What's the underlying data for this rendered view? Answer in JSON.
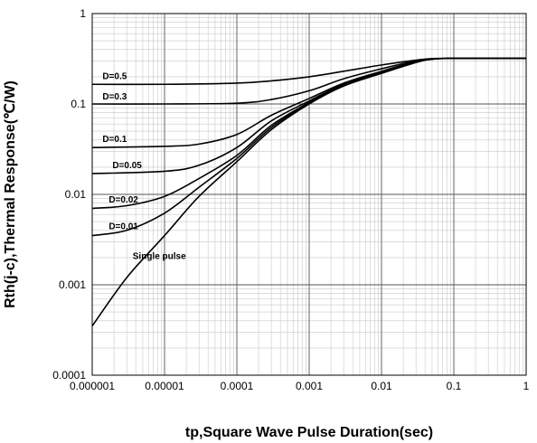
{
  "chart_data": {
    "type": "line",
    "title": "",
    "xlabel": "tp,Square Wave Pulse Duration(sec)",
    "ylabel": "Rth(j-c),Thermal Response(℃/W)",
    "x_scale": "log",
    "y_scale": "log",
    "xlim": [
      1e-06,
      1
    ],
    "ylim": [
      0.0001,
      1
    ],
    "x_ticks": [
      "0.000001",
      "0.00001",
      "0.0001",
      "0.001",
      "0.01",
      "0.1",
      "1"
    ],
    "y_ticks": [
      "0.0001",
      "0.001",
      "0.01",
      "0.1",
      "1"
    ],
    "grid": true,
    "series": [
      {
        "name": "D=0.5",
        "points": [
          [
            1e-06,
            0.165
          ],
          [
            1e-05,
            0.165
          ],
          [
            0.0001,
            0.17
          ],
          [
            0.0003,
            0.18
          ],
          [
            0.001,
            0.2
          ],
          [
            0.003,
            0.23
          ],
          [
            0.01,
            0.27
          ],
          [
            0.03,
            0.305
          ],
          [
            0.05,
            0.318
          ],
          [
            0.1,
            0.32
          ],
          [
            1,
            0.32
          ]
        ]
      },
      {
        "name": "D=0.3",
        "points": [
          [
            1e-06,
            0.1
          ],
          [
            1e-05,
            0.1
          ],
          [
            0.0001,
            0.102
          ],
          [
            0.0003,
            0.112
          ],
          [
            0.001,
            0.14
          ],
          [
            0.003,
            0.19
          ],
          [
            0.01,
            0.245
          ],
          [
            0.03,
            0.3
          ],
          [
            0.05,
            0.316
          ],
          [
            0.1,
            0.32
          ],
          [
            1,
            0.32
          ]
        ]
      },
      {
        "name": "D=0.1",
        "points": [
          [
            1e-06,
            0.033
          ],
          [
            1e-05,
            0.034
          ],
          [
            3e-05,
            0.036
          ],
          [
            0.0001,
            0.046
          ],
          [
            0.0003,
            0.075
          ],
          [
            0.001,
            0.115
          ],
          [
            0.003,
            0.17
          ],
          [
            0.01,
            0.23
          ],
          [
            0.03,
            0.295
          ],
          [
            0.05,
            0.315
          ],
          [
            0.1,
            0.32
          ],
          [
            1,
            0.32
          ]
        ]
      },
      {
        "name": "D=0.05",
        "points": [
          [
            1e-06,
            0.017
          ],
          [
            1e-05,
            0.018
          ],
          [
            3e-05,
            0.021
          ],
          [
            0.0001,
            0.033
          ],
          [
            0.0003,
            0.065
          ],
          [
            0.001,
            0.108
          ],
          [
            0.003,
            0.165
          ],
          [
            0.01,
            0.225
          ],
          [
            0.03,
            0.292
          ],
          [
            0.05,
            0.314
          ],
          [
            0.1,
            0.32
          ],
          [
            1,
            0.32
          ]
        ]
      },
      {
        "name": "D=0.02",
        "points": [
          [
            1e-06,
            0.007
          ],
          [
            3e-06,
            0.0075
          ],
          [
            1e-05,
            0.0095
          ],
          [
            3e-05,
            0.015
          ],
          [
            0.0001,
            0.027
          ],
          [
            0.0003,
            0.058
          ],
          [
            0.001,
            0.104
          ],
          [
            0.003,
            0.162
          ],
          [
            0.01,
            0.222
          ],
          [
            0.03,
            0.29
          ],
          [
            0.05,
            0.313
          ],
          [
            0.1,
            0.32
          ],
          [
            1,
            0.32
          ]
        ]
      },
      {
        "name": "D=0.01",
        "points": [
          [
            1e-06,
            0.0035
          ],
          [
            3e-06,
            0.004
          ],
          [
            1e-05,
            0.0062
          ],
          [
            3e-05,
            0.012
          ],
          [
            0.0001,
            0.025
          ],
          [
            0.0003,
            0.055
          ],
          [
            0.001,
            0.102
          ],
          [
            0.003,
            0.16
          ],
          [
            0.01,
            0.22
          ],
          [
            0.03,
            0.289
          ],
          [
            0.05,
            0.313
          ],
          [
            0.1,
            0.32
          ],
          [
            1,
            0.32
          ]
        ]
      },
      {
        "name": "Single pulse",
        "points": [
          [
            1e-06,
            0.00035
          ],
          [
            3e-06,
            0.0012
          ],
          [
            1e-05,
            0.0035
          ],
          [
            3e-05,
            0.0095
          ],
          [
            0.0001,
            0.023
          ],
          [
            0.0003,
            0.052
          ],
          [
            0.001,
            0.1
          ],
          [
            0.003,
            0.158
          ],
          [
            0.01,
            0.218
          ],
          [
            0.03,
            0.288
          ],
          [
            0.05,
            0.312
          ],
          [
            0.1,
            0.32
          ],
          [
            1,
            0.32
          ]
        ]
      }
    ]
  }
}
